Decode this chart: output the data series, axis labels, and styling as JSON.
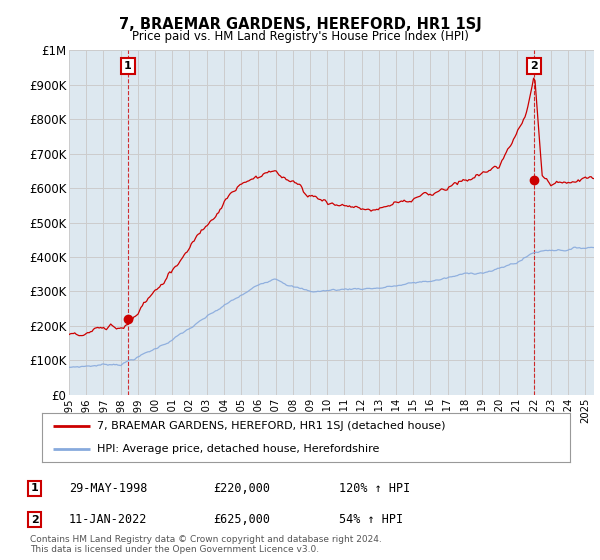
{
  "title": "7, BRAEMAR GARDENS, HEREFORD, HR1 1SJ",
  "subtitle": "Price paid vs. HM Land Registry's House Price Index (HPI)",
  "ylim": [
    0,
    1000000
  ],
  "yticks": [
    0,
    100000,
    200000,
    300000,
    400000,
    500000,
    600000,
    700000,
    800000,
    900000,
    1000000
  ],
  "ytick_labels": [
    "£0",
    "£100K",
    "£200K",
    "£300K",
    "£400K",
    "£500K",
    "£600K",
    "£700K",
    "£800K",
    "£900K",
    "£1M"
  ],
  "sale1": {
    "date_num": 1998.41,
    "price": 220000,
    "label": "1",
    "date_str": "29-MAY-1998",
    "gain": "120% ↑ HPI"
  },
  "sale2": {
    "date_num": 2022.03,
    "price": 625000,
    "label": "2",
    "date_str": "11-JAN-2022",
    "gain": "54% ↑ HPI"
  },
  "property_line_color": "#cc0000",
  "hpi_line_color": "#88aadd",
  "grid_color": "#cccccc",
  "plot_bg_color": "#dde8f0",
  "background_color": "#ffffff",
  "legend_label_property": "7, BRAEMAR GARDENS, HEREFORD, HR1 1SJ (detached house)",
  "legend_label_hpi": "HPI: Average price, detached house, Herefordshire",
  "footnote": "Contains HM Land Registry data © Crown copyright and database right 2024.\nThis data is licensed under the Open Government Licence v3.0.",
  "xmin": 1995.0,
  "xmax": 2025.5
}
